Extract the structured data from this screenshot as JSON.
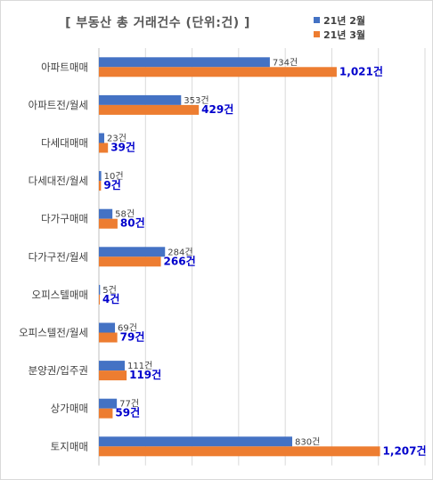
{
  "chart_data": {
    "type": "bar",
    "orientation": "horizontal",
    "title": "[ 부동산 총 거래건수 (단위:건) ]",
    "categories": [
      "아파트매매",
      "아파트전/월세",
      "다세대매매",
      "다세대전/월세",
      "다가구매매",
      "다가구전/월세",
      "오피스텔매매",
      "오피스텔전/월세",
      "분양권/입주권",
      "상가매매",
      "토지매매"
    ],
    "series": [
      {
        "name": "21년 2월",
        "color": "#4472c4",
        "values": [
          734,
          353,
          23,
          10,
          58,
          284,
          5,
          69,
          111,
          77,
          830
        ],
        "labels": [
          "734건",
          "353건",
          "23건",
          "10건",
          "58건",
          "284건",
          "5건",
          "69건",
          "111건",
          "77건",
          "830건"
        ]
      },
      {
        "name": "21년 3월",
        "color": "#ed7d31",
        "values": [
          1021,
          429,
          39,
          9,
          80,
          266,
          4,
          79,
          119,
          59,
          1207
        ],
        "labels": [
          "1,021건",
          "429건",
          "39건",
          "9건",
          "80건",
          "266건",
          "4건",
          "79건",
          "119건",
          "59건",
          "1,207건"
        ]
      }
    ],
    "xlim": [
      0,
      1400
    ],
    "grid": true,
    "legend_position": "top-right",
    "label_color_series2": "#0000cc"
  }
}
